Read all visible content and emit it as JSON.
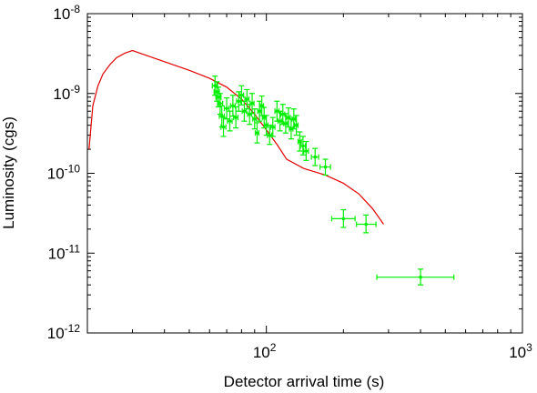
{
  "chart_data": {
    "type": "line",
    "xlabel": "Detector arrival time (s)",
    "ylabel": "Luminosity (cgs)",
    "xscale": "log",
    "yscale": "log",
    "xlim": [
      20,
      1000
    ],
    "ylim": [
      1e-12,
      1e-08
    ],
    "grid": false,
    "x_ticks": [
      {
        "base": "10",
        "exp": "2",
        "value": 100
      },
      {
        "base": "10",
        "exp": "3",
        "value": 1000
      }
    ],
    "y_ticks": [
      {
        "base": "10",
        "exp": "-8",
        "value": 1e-08
      },
      {
        "base": "10",
        "exp": "-9",
        "value": 1e-09
      },
      {
        "base": "10",
        "exp": "-10",
        "value": 1e-10
      },
      {
        "base": "10",
        "exp": "-11",
        "value": 1e-11
      },
      {
        "base": "10",
        "exp": "-12",
        "value": 1e-12
      }
    ],
    "series": [
      {
        "type": "line",
        "color": "#e00000",
        "x": [
          20.3,
          21,
          22,
          23,
          24.5,
          26,
          28,
          30,
          34,
          40,
          50,
          60,
          70,
          80,
          90,
          100,
          110,
          120,
          140,
          170,
          200,
          230,
          260,
          287
        ],
        "y": [
          2e-10,
          7e-10,
          1.25e-09,
          1.75e-09,
          2.3e-09,
          2.8e-09,
          3.2e-09,
          3.45e-09,
          3e-09,
          2.5e-09,
          1.95e-09,
          1.55e-09,
          1.2e-09,
          8.5e-10,
          5.5e-10,
          3.5e-10,
          2.3e-10,
          1.5e-10,
          1.15e-10,
          9.5e-11,
          7.5e-11,
          5.5e-11,
          3.6e-11,
          2.3e-11
        ]
      },
      {
        "type": "errorbar",
        "color": "#00ee00",
        "points": [
          {
            "x": 63,
            "y": 1.25e-09,
            "xlo": 61.5,
            "xhi": 64.5,
            "ylo": 9.5e-10,
            "yhi": 1.65e-09
          },
          {
            "x": 64,
            "y": 1.05e-09,
            "xlo": 62.5,
            "xhi": 65.5,
            "ylo": 8e-10,
            "yhi": 1.4e-09
          },
          {
            "x": 65,
            "y": 9e-10,
            "xlo": 63.5,
            "xhi": 66.5,
            "ylo": 6.8e-10,
            "yhi": 1.2e-09
          },
          {
            "x": 66,
            "y": 7.5e-10,
            "xlo": 64.5,
            "xhi": 67.5,
            "ylo": 5.5e-10,
            "yhi": 1e-09
          },
          {
            "x": 67,
            "y": 5.2e-10,
            "xlo": 65.5,
            "xhi": 68.5,
            "ylo": 3.8e-10,
            "yhi": 7e-10
          },
          {
            "x": 68,
            "y": 3.8e-10,
            "xlo": 66.5,
            "xhi": 69.5,
            "ylo": 2.9e-10,
            "yhi": 5e-10
          },
          {
            "x": 70,
            "y": 6.5e-10,
            "xlo": 68.5,
            "xhi": 71.5,
            "ylo": 4.8e-10,
            "yhi": 8.8e-10
          },
          {
            "x": 72,
            "y": 4.5e-10,
            "xlo": 70.5,
            "xhi": 73.5,
            "ylo": 3.4e-10,
            "yhi": 6e-10
          },
          {
            "x": 74,
            "y": 7e-10,
            "xlo": 72.5,
            "xhi": 75.5,
            "ylo": 5.2e-10,
            "yhi": 9.5e-10
          },
          {
            "x": 76,
            "y": 5e-10,
            "xlo": 74.5,
            "xhi": 77.5,
            "ylo": 3.7e-10,
            "yhi": 6.8e-10
          },
          {
            "x": 78,
            "y": 8e-10,
            "xlo": 76.5,
            "xhi": 79.5,
            "ylo": 6e-10,
            "yhi": 1.05e-09
          },
          {
            "x": 80,
            "y": 9.5e-10,
            "xlo": 78.5,
            "xhi": 81.5,
            "ylo": 7.2e-10,
            "yhi": 1.25e-09
          },
          {
            "x": 82,
            "y": 6e-10,
            "xlo": 80.5,
            "xhi": 83.5,
            "ylo": 4.5e-10,
            "yhi": 8e-10
          },
          {
            "x": 84,
            "y": 8.5e-10,
            "xlo": 82.5,
            "xhi": 85.5,
            "ylo": 6.4e-10,
            "yhi": 1.12e-09
          },
          {
            "x": 86,
            "y": 5.5e-10,
            "xlo": 84.5,
            "xhi": 87.5,
            "ylo": 4.1e-10,
            "yhi": 7.3e-10
          },
          {
            "x": 88,
            "y": 7.5e-10,
            "xlo": 86.5,
            "xhi": 89.5,
            "ylo": 5.6e-10,
            "yhi": 1e-09
          },
          {
            "x": 90,
            "y": 4.8e-10,
            "xlo": 88.5,
            "xhi": 91.5,
            "ylo": 3.6e-10,
            "yhi": 6.4e-10
          },
          {
            "x": 92,
            "y": 3.2e-10,
            "xlo": 90.5,
            "xhi": 93.5,
            "ylo": 2.4e-10,
            "yhi": 4.3e-10
          },
          {
            "x": 94,
            "y": 6e-10,
            "xlo": 92.5,
            "xhi": 95.5,
            "ylo": 4.5e-10,
            "yhi": 8e-10
          },
          {
            "x": 96,
            "y": 7e-10,
            "xlo": 94.5,
            "xhi": 97.5,
            "ylo": 5.3e-10,
            "yhi": 9.3e-10
          },
          {
            "x": 98,
            "y": 5e-10,
            "xlo": 96.5,
            "xhi": 99.5,
            "ylo": 3.7e-10,
            "yhi": 6.7e-10
          },
          {
            "x": 100,
            "y": 4e-10,
            "xlo": 98.5,
            "xhi": 101.5,
            "ylo": 3e-10,
            "yhi": 5.3e-10
          },
          {
            "x": 103,
            "y": 3e-10,
            "xlo": 101,
            "xhi": 105,
            "ylo": 2.3e-10,
            "yhi": 4e-10
          },
          {
            "x": 106,
            "y": 3.8e-10,
            "xlo": 104,
            "xhi": 108,
            "ylo": 2.9e-10,
            "yhi": 5e-10
          },
          {
            "x": 110,
            "y": 6e-10,
            "xlo": 108,
            "xhi": 112,
            "ylo": 4.5e-10,
            "yhi": 8e-10
          },
          {
            "x": 113,
            "y": 4.5e-10,
            "xlo": 111,
            "xhi": 115,
            "ylo": 3.4e-10,
            "yhi": 6e-10
          },
          {
            "x": 116,
            "y": 5.5e-10,
            "xlo": 114,
            "xhi": 118,
            "ylo": 4.1e-10,
            "yhi": 7.3e-10
          },
          {
            "x": 119,
            "y": 4.2e-10,
            "xlo": 117,
            "xhi": 121,
            "ylo": 3.2e-10,
            "yhi": 5.6e-10
          },
          {
            "x": 122,
            "y": 5e-10,
            "xlo": 120,
            "xhi": 124,
            "ylo": 3.8e-10,
            "yhi": 6.6e-10
          },
          {
            "x": 125,
            "y": 3.6e-10,
            "xlo": 123,
            "xhi": 127,
            "ylo": 2.7e-10,
            "yhi": 4.8e-10
          },
          {
            "x": 128,
            "y": 4.8e-10,
            "xlo": 126,
            "xhi": 130,
            "ylo": 3.6e-10,
            "yhi": 6.4e-10
          },
          {
            "x": 131,
            "y": 4e-10,
            "xlo": 129,
            "xhi": 133,
            "ylo": 3e-10,
            "yhi": 5.3e-10
          },
          {
            "x": 135,
            "y": 2.5e-10,
            "xlo": 133,
            "xhi": 137,
            "ylo": 1.9e-10,
            "yhi": 3.3e-10
          },
          {
            "x": 139,
            "y": 2.2e-10,
            "xlo": 136,
            "xhi": 142,
            "ylo": 1.7e-10,
            "yhi": 2.9e-10
          },
          {
            "x": 143,
            "y": 1.9e-10,
            "xlo": 140,
            "xhi": 146,
            "ylo": 1.45e-10,
            "yhi": 2.5e-10
          },
          {
            "x": 155,
            "y": 1.6e-10,
            "xlo": 150,
            "xhi": 160,
            "ylo": 1.25e-10,
            "yhi": 2.05e-10
          },
          {
            "x": 170,
            "y": 1.2e-10,
            "xlo": 162,
            "xhi": 178,
            "ylo": 9.5e-11,
            "yhi": 1.5e-10
          },
          {
            "x": 200,
            "y": 2.7e-11,
            "xlo": 180,
            "xhi": 222,
            "ylo": 2.1e-11,
            "yhi": 3.5e-11
          },
          {
            "x": 245,
            "y": 2.3e-11,
            "xlo": 225,
            "xhi": 268,
            "ylo": 1.8e-11,
            "yhi": 3e-11
          },
          {
            "x": 400,
            "y": 5e-12,
            "xlo": 270,
            "xhi": 540,
            "ylo": 4e-12,
            "yhi": 6.3e-12
          }
        ]
      }
    ]
  }
}
